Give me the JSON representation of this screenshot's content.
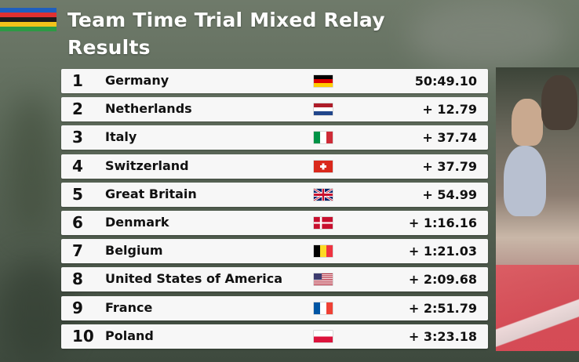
{
  "title": {
    "line1": "Team Time Trial Mixed Relay",
    "line2": "Results"
  },
  "logo_stripes": [
    "#1f5fbf",
    "#e03131",
    "#1c1c1c",
    "#f2c31b",
    "#2c9a44"
  ],
  "results": [
    {
      "rank": "1",
      "country": "Germany",
      "flag": "germany-flag-icon",
      "time": "50:49.10"
    },
    {
      "rank": "2",
      "country": "Netherlands",
      "flag": "netherlands-flag-icon",
      "time": "+ 12.79"
    },
    {
      "rank": "3",
      "country": "Italy",
      "flag": "italy-flag-icon",
      "time": "+ 37.74"
    },
    {
      "rank": "4",
      "country": "Switzerland",
      "flag": "switzerland-flag-icon",
      "time": "+ 37.79"
    },
    {
      "rank": "5",
      "country": "Great Britain",
      "flag": "great-britain-flag-icon",
      "time": "+ 54.99"
    },
    {
      "rank": "6",
      "country": "Denmark",
      "flag": "denmark-flag-icon",
      "time": "+ 1:16.16"
    },
    {
      "rank": "7",
      "country": "Belgium",
      "flag": "belgium-flag-icon",
      "time": "+ 1:21.03"
    },
    {
      "rank": "8",
      "country": "United States of America",
      "flag": "usa-flag-icon",
      "time": "+ 2:09.68"
    },
    {
      "rank": "9",
      "country": "France",
      "flag": "france-flag-icon",
      "time": "+ 2:51.79"
    },
    {
      "rank": "10",
      "country": "Poland",
      "flag": "poland-flag-icon",
      "time": "+ 3:23.18"
    }
  ]
}
